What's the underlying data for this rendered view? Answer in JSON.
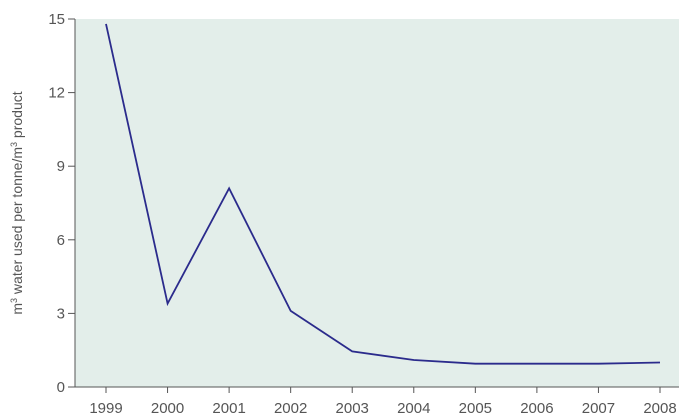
{
  "chart_data": {
    "type": "line",
    "ylabel_main": "m",
    "ylabel_sup": "3",
    "ylabel_mid": " water used per tonne/m",
    "ylabel_sup2": "3",
    "ylabel_end": " product",
    "x": [
      "1999",
      "2000",
      "2001",
      "2002",
      "2003",
      "2004",
      "2005",
      "2006",
      "2007",
      "2008"
    ],
    "series": [
      {
        "values": [
          14.8,
          3.4,
          8.1,
          3.1,
          1.45,
          1.1,
          0.95,
          0.95,
          0.95,
          1.0
        ]
      }
    ],
    "yticks": [
      0,
      3,
      6,
      9,
      12,
      15
    ],
    "ytick_labels": [
      "0",
      "3",
      "6",
      "9",
      "12",
      "15"
    ],
    "ylim": [
      0,
      15
    ],
    "grid": false,
    "colors": {
      "background": "#e3eeea",
      "line": "#2b2b8c",
      "axis": "#555555"
    }
  }
}
